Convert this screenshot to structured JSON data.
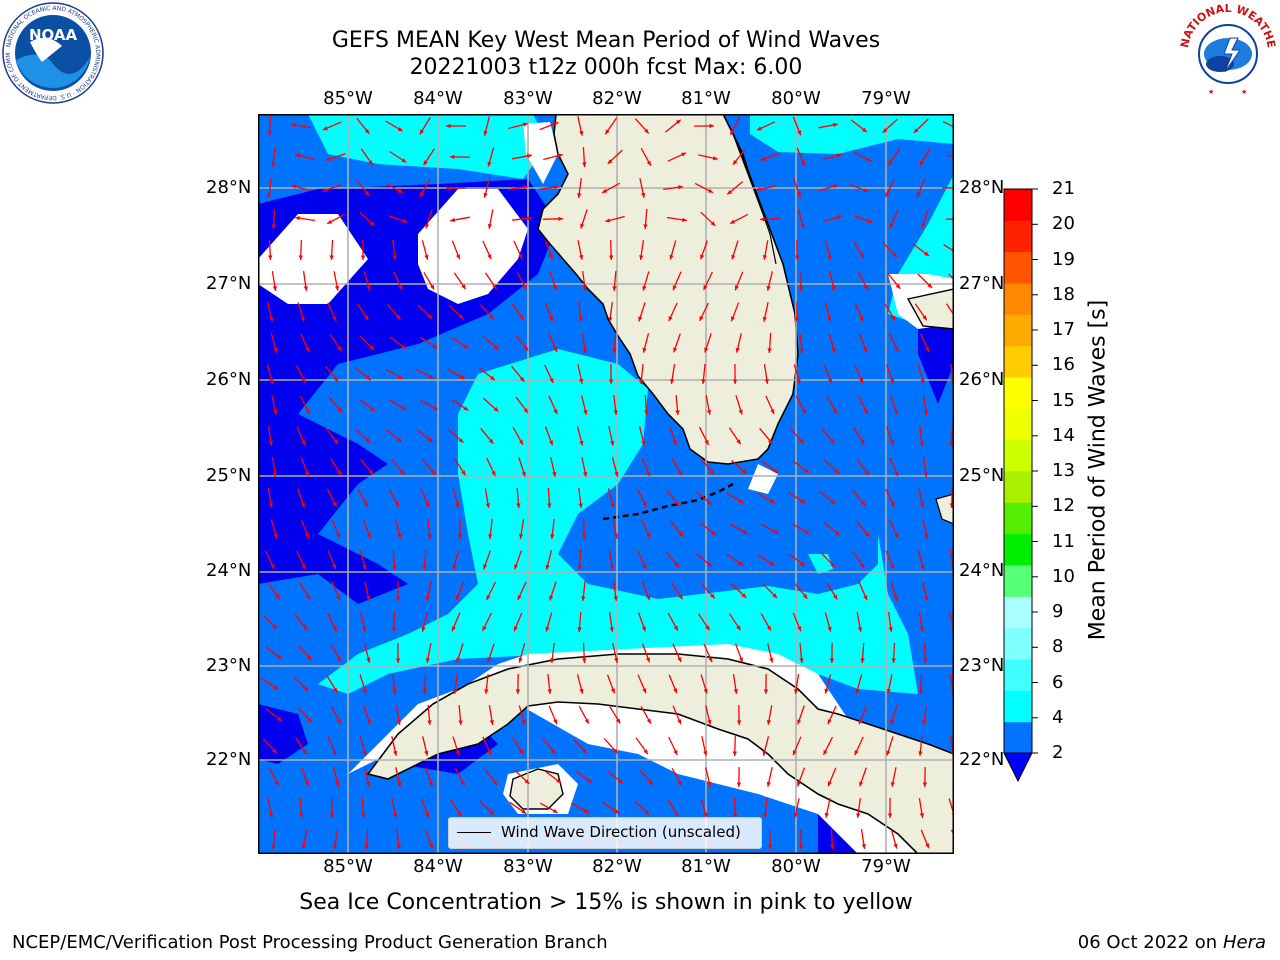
{
  "title_line1": "GEFS MEAN Key West Mean Period of Wind Waves",
  "title_line2": "20221003 t12z 000h fcst   Max: 6.00",
  "logos": {
    "noaa_text": "NOAA",
    "noaa_ring_text": "NATIONAL OCEANIC AND ATMOSPHERIC ADMINISTRATION · U.S. DEPARTMENT OF COMMERCE",
    "nws_ring_text": "NATIONAL WEATHER SERVICE"
  },
  "map": {
    "lon_labels": [
      "85°W",
      "84°W",
      "83°W",
      "82°W",
      "81°W",
      "80°W",
      "79°W"
    ],
    "lat_labels": [
      "28°N",
      "27°N",
      "26°N",
      "25°N",
      "24°N",
      "23°N",
      "22°N"
    ],
    "legend_label": "Wind Wave Direction (unscaled)",
    "colors": {
      "ocean_blue": "#0073ff",
      "dark_blue": "#0000ee",
      "cyan": "#00ffff",
      "land": "#eeeedc",
      "arrows": "#ff0000",
      "grid": "#b0b0b0"
    }
  },
  "colorbar": {
    "title": "Mean Period of Wind Waves [s]",
    "ticks": [
      "2",
      "4",
      "6",
      "8",
      "9",
      "10",
      "11",
      "12",
      "13",
      "14",
      "15",
      "16",
      "17",
      "18",
      "19",
      "20",
      "21"
    ],
    "colors": [
      "#0073ff",
      "#00ffff",
      "#40ffff",
      "#80ffff",
      "#aaffff",
      "#55ff77",
      "#00ee00",
      "#55ee00",
      "#aaee00",
      "#ccff00",
      "#eeff00",
      "#ffff00",
      "#ffcc00",
      "#ffaa00",
      "#ff8800",
      "#ff5500",
      "#ff2200",
      "#ff0000"
    ],
    "under_color": "#0000ff"
  },
  "caption": "Sea Ice Concentration > 15% is shown in pink to yellow",
  "footer_left": "NCEP/EMC/Verification Post Processing Product Generation Branch",
  "footer_date": "06 Oct 2022 on",
  "footer_machine": "Hera"
}
